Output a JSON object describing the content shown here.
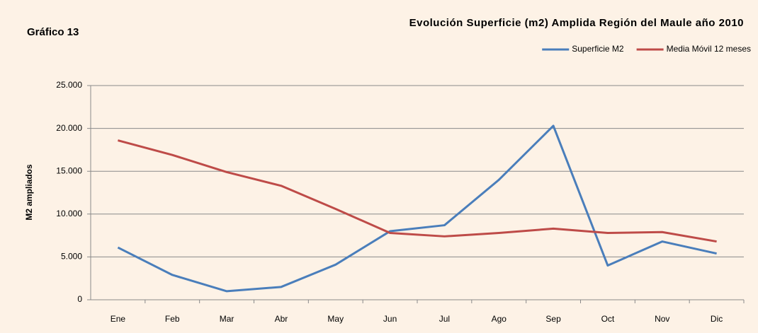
{
  "chart_data": {
    "type": "line",
    "title": "Evolución Superficie (m2) Amplida Región del Maule año 2010",
    "label": "Gráfico 13",
    "ylabel": "M2 ampliados",
    "categories": [
      "Ene",
      "Feb",
      "Mar",
      "Abr",
      "May",
      "Jun",
      "Jul",
      "Ago",
      "Sep",
      "Oct",
      "Nov",
      "Dic"
    ],
    "series": [
      {
        "name": "Superficie M2",
        "color": "#4a7ebb",
        "values": [
          6100,
          2900,
          1000,
          1500,
          4100,
          8000,
          8700,
          14000,
          20300,
          4000,
          6800,
          5400
        ]
      },
      {
        "name": "Media Móvil 12 meses",
        "color": "#be4b48",
        "values": [
          18600,
          16900,
          14900,
          13300,
          10600,
          7800,
          7400,
          7800,
          8300,
          7800,
          7900,
          6800
        ]
      }
    ],
    "ylim": [
      0,
      25000
    ],
    "yticks": [
      0,
      {
        "value": 5000,
        "label": "5.000"
      },
      {
        "value": 10000,
        "label": "10.000"
      },
      {
        "value": 15000,
        "label": "15.000"
      },
      {
        "value": 20000,
        "label": "20.000"
      },
      {
        "value": 25000,
        "label": "25.000"
      }
    ],
    "grid": true,
    "legend": "top-right"
  }
}
